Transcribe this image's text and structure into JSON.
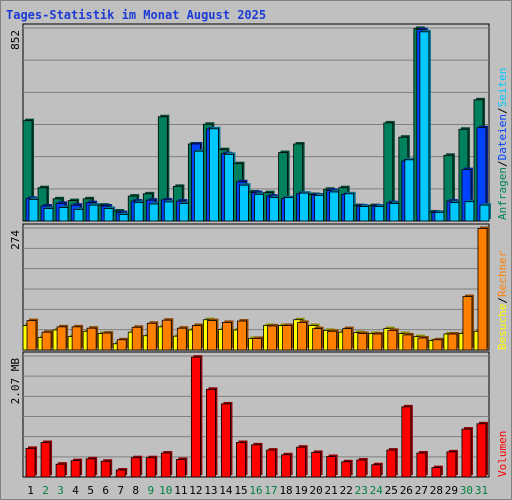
{
  "title": "Tages-Statistik im Monat August 2025",
  "colors": {
    "background": "#c0c0c0",
    "plot_bg": "#c0c0c0",
    "grid": "#808080",
    "anfragen": "#00805c",
    "dateien": "#0042ff",
    "seiten": "#00c8ff",
    "besuche": "#ffff00",
    "rechner": "#ff8000",
    "volumen": "#ff0000",
    "weekday_label": "#000000",
    "weekend_label": "#008040"
  },
  "legend": {
    "upper": [
      {
        "label": "Anfragen",
        "color_key": "anfragen"
      },
      {
        "label": "Dateien",
        "color_key": "dateien"
      },
      {
        "label": "Seiten",
        "color_key": "seiten"
      }
    ],
    "middle": [
      {
        "label": "Besuche",
        "color_key": "besuche"
      },
      {
        "label": "Rechner",
        "color_key": "rechner"
      }
    ],
    "lower": [
      {
        "label": "Volumen",
        "color_key": "volumen"
      }
    ],
    "separator": "/"
  },
  "chart_data": {
    "type": "bar",
    "days": [
      "1",
      "2",
      "3",
      "4",
      "5",
      "6",
      "7",
      "8",
      "9",
      "10",
      "11",
      "12",
      "13",
      "14",
      "15",
      "16",
      "17",
      "18",
      "19",
      "20",
      "21",
      "22",
      "23",
      "24",
      "25",
      "26",
      "27",
      "28",
      "29",
      "30",
      "31"
    ],
    "weekend_days": [
      "2",
      "3",
      "9",
      "10",
      "16",
      "17",
      "23",
      "24",
      "30",
      "31"
    ],
    "panels": [
      {
        "id": "hits",
        "ymax_label": "852",
        "ylim": [
          0,
          852
        ],
        "series": [
          {
            "name": "Anfragen",
            "color_key": "anfragen",
            "values": [
              443,
              147,
              98,
              90,
              98,
              70,
              44,
              110,
              120,
              460,
              153,
              340,
              427,
              315,
              253,
              128,
              125,
              302,
              340,
              117,
              140,
              147,
              68,
              68,
              433,
              370,
              850,
              40,
              290,
              405,
              535
            ]
          },
          {
            "name": "Dateien",
            "color_key": "dateien",
            "values": [
              100,
              66,
              78,
              70,
              81,
              66,
              37,
              88,
              92,
              93,
              88,
              340,
              406,
              297,
              173,
              125,
              110,
              99,
              121,
              115,
              135,
              117,
              66,
              66,
              81,
              265,
              845,
              38,
              88,
              227,
              412
            ]
          },
          {
            "name": "Seiten",
            "color_key": "seiten",
            "values": [
              95,
              55,
              59,
              51,
              70,
              55,
              29,
              81,
              75,
              84,
              77,
              308,
              407,
              294,
              158,
              117,
              103,
              103,
              123,
              113,
              128,
              120,
              64,
              64,
              77,
              270,
              835,
              38,
              81,
              85,
              70
            ]
          }
        ]
      },
      {
        "id": "visits",
        "ymax_label": "274",
        "ylim": [
          0,
          274
        ],
        "series": [
          {
            "name": "Besuche",
            "color_key": "besuche",
            "values": [
              55,
              28,
              45,
              30,
              42,
              37,
              14,
              40,
              32,
              52,
              31,
              45,
              68,
              46,
              45,
              26,
              55,
              55,
              68,
              55,
              44,
              40,
              39,
              37,
              48,
              37,
              30,
              21,
              36,
              37,
              42
            ]
          },
          {
            "name": "Rechner",
            "color_key": "rechner",
            "values": [
              66,
              40,
              52,
              52,
              49,
              38,
              23,
              51,
              60,
              67,
              49,
              55,
              66,
              62,
              65,
              26,
              54,
              55,
              62,
              48,
              42,
              48,
              37,
              36,
              44,
              34,
              27,
              23,
              36,
              120,
              273
            ]
          }
        ]
      },
      {
        "id": "volume",
        "ymax_label": "2.07 MB",
        "ylim": [
          0,
          2.07
        ],
        "series": [
          {
            "name": "Volumen",
            "color_key": "volumen",
            "values": [
              0.49,
              0.59,
              0.22,
              0.28,
              0.31,
              0.27,
              0.12,
              0.33,
              0.33,
              0.41,
              0.3,
              2.05,
              1.5,
              1.25,
              0.59,
              0.55,
              0.46,
              0.38,
              0.51,
              0.42,
              0.35,
              0.26,
              0.29,
              0.21,
              0.46,
              1.2,
              0.41,
              0.16,
              0.43,
              0.82,
              0.91
            ]
          }
        ]
      }
    ]
  }
}
